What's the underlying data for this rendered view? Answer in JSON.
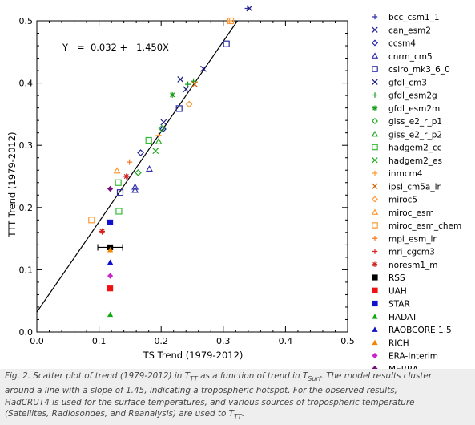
{
  "chart_data": {
    "type": "scatter",
    "xlabel": "TS Trend (1979-2012)",
    "ylabel": "TTT Trend (1979-2012)",
    "xlim": [
      0.0,
      0.5
    ],
    "ylim": [
      0.0,
      0.5
    ],
    "xticks": [
      "0.0",
      "0.1",
      "0.2",
      "0.3",
      "0.4",
      "0.5"
    ],
    "yticks": [
      "0.0",
      "0.1",
      "0.2",
      "0.3",
      "0.4",
      "0.5"
    ],
    "xtick_values": [
      0,
      0.1,
      0.2,
      0.3,
      0.4,
      0.5
    ],
    "ytick_values": [
      0,
      0.1,
      0.2,
      0.3,
      0.4,
      0.5
    ],
    "annotation": "Y   =  0.032 +   1.450X",
    "fit_line": {
      "intercept": 0.032,
      "slope": 1.45
    },
    "legend_position": "right, outside plot",
    "series": [
      {
        "name": "bcc_csm1_1",
        "marker": "plus",
        "color": "#3333aa",
        "points": [
          [
            0.339,
            0.52
          ]
        ]
      },
      {
        "name": "can_esm2",
        "marker": "x",
        "color": "#1e1e8c",
        "points": [
          [
            0.342,
            0.52
          ]
        ]
      },
      {
        "name": "ccsm4",
        "marker": "diamond",
        "color": "#2222aa",
        "points": [
          [
            0.203,
            0.326
          ],
          [
            0.167,
            0.288
          ]
        ]
      },
      {
        "name": "cnrm_cm5",
        "marker": "triangle",
        "color": "#3333aa",
        "points": [
          [
            0.158,
            0.233
          ],
          [
            0.158,
            0.228
          ],
          [
            0.181,
            0.262
          ]
        ]
      },
      {
        "name": "csiro_mk3_6_0",
        "marker": "square",
        "color": "#2a2aa0",
        "points": [
          [
            0.134,
            0.224
          ],
          [
            0.229,
            0.359
          ],
          [
            0.305,
            0.463
          ]
        ]
      },
      {
        "name": "gfdl_cm3",
        "marker": "x",
        "color": "#1a1a80",
        "points": [
          [
            0.204,
            0.337
          ],
          [
            0.231,
            0.406
          ],
          [
            0.24,
            0.39
          ],
          [
            0.268,
            0.423
          ]
        ]
      },
      {
        "name": "gfdl_esm2g",
        "marker": "plus",
        "color": "#1a9a1a",
        "points": [
          [
            0.243,
            0.398
          ],
          [
            0.252,
            0.403
          ]
        ]
      },
      {
        "name": "gfdl_esm2m",
        "marker": "asterisk",
        "color": "#1a9a1a",
        "points": [
          [
            0.218,
            0.381
          ]
        ]
      },
      {
        "name": "giss_e2_r_p1",
        "marker": "diamond",
        "color": "#22aa22",
        "points": [
          [
            0.163,
            0.256
          ],
          [
            0.201,
            0.327
          ]
        ]
      },
      {
        "name": "giss_e2_r_p2",
        "marker": "triangle",
        "color": "#22aa22",
        "points": [
          [
            0.196,
            0.306
          ]
        ]
      },
      {
        "name": "hadgem2_cc",
        "marker": "square",
        "color": "#33bb33",
        "points": [
          [
            0.131,
            0.24
          ],
          [
            0.132,
            0.194
          ],
          [
            0.18,
            0.308
          ]
        ]
      },
      {
        "name": "hadgem2_es",
        "marker": "x",
        "color": "#22aa22",
        "points": [
          [
            0.191,
            0.291
          ]
        ]
      },
      {
        "name": "inmcm4",
        "marker": "plus",
        "color": "#ff9933",
        "points": [
          [
            0.196,
            0.316
          ],
          [
            0.31,
            0.5
          ]
        ]
      },
      {
        "name": "ipsl_cm5a_lr",
        "marker": "x",
        "color": "#cc6600",
        "points": [
          [
            0.254,
            0.398
          ]
        ]
      },
      {
        "name": "miroc5",
        "marker": "diamond",
        "color": "#ff9933",
        "points": [
          [
            0.245,
            0.366
          ]
        ]
      },
      {
        "name": "miroc_esm",
        "marker": "triangle",
        "color": "#ff9933",
        "points": [
          [
            0.129,
            0.259
          ]
        ]
      },
      {
        "name": "miroc_esm_chem",
        "marker": "square",
        "color": "#ff9933",
        "points": [
          [
            0.088,
            0.18
          ],
          [
            0.312,
            0.5
          ]
        ]
      },
      {
        "name": "mpi_esm_lr",
        "marker": "plus",
        "color": "#ff7722",
        "points": [
          [
            0.149,
            0.273
          ]
        ]
      },
      {
        "name": "mri_cgcm3",
        "marker": "plus",
        "color": "#dd2222",
        "points": [
          [
            0.105,
            0.161
          ]
        ]
      },
      {
        "name": "noresm1_m",
        "marker": "asterisk",
        "color": "#cc2222",
        "points": [
          [
            0.144,
            0.25
          ],
          [
            0.105,
            0.162
          ]
        ]
      },
      {
        "name": "RSS",
        "marker": "filled-square",
        "color": "#000000",
        "points": [
          [
            0.118,
            0.136
          ]
        ],
        "xerr": 0.02
      },
      {
        "name": "UAH",
        "marker": "filled-square",
        "color": "#ee1111",
        "points": [
          [
            0.118,
            0.07
          ]
        ]
      },
      {
        "name": "STAR",
        "marker": "filled-square",
        "color": "#1111cc",
        "points": [
          [
            0.118,
            0.176
          ]
        ]
      },
      {
        "name": "HADAT",
        "marker": "filled-triangle",
        "color": "#11aa11",
        "points": [
          [
            0.118,
            0.028
          ]
        ]
      },
      {
        "name": "RAOBCORE 1.5",
        "marker": "filled-triangle",
        "color": "#1111cc",
        "points": [
          [
            0.118,
            0.112
          ]
        ]
      },
      {
        "name": "RICH",
        "marker": "filled-triangle",
        "color": "#ee8800",
        "points": [
          [
            0.118,
            0.132
          ]
        ]
      },
      {
        "name": "ERA-Interim",
        "marker": "filled-diamond",
        "color": "#cc22cc",
        "points": [
          [
            0.118,
            0.09
          ]
        ]
      },
      {
        "name": "MERRA",
        "marker": "filled-diamond",
        "color": "#771177",
        "points": [
          [
            0.118,
            0.23
          ]
        ]
      }
    ]
  },
  "caption": {
    "line1": "Fig. 2. Scatter plot of trend (1979-2012) in T",
    "line1_sub": "TT",
    "line1_b": " as a function of trend in T",
    "line1_sub2": "Surf",
    "line1_c": ". The model results cluster",
    "line2": "around a line with a slope of 1.45, indicating a tropospheric hotspot. For the observed results,",
    "line3": "HadCRUT4 is used for the surface temperatures, and various sources of tropospheric temperature",
    "line4": "(Satellites, Radiosondes, and Reanalysis) are used to T",
    "line4_sub": "TT",
    "line4_end": "."
  }
}
